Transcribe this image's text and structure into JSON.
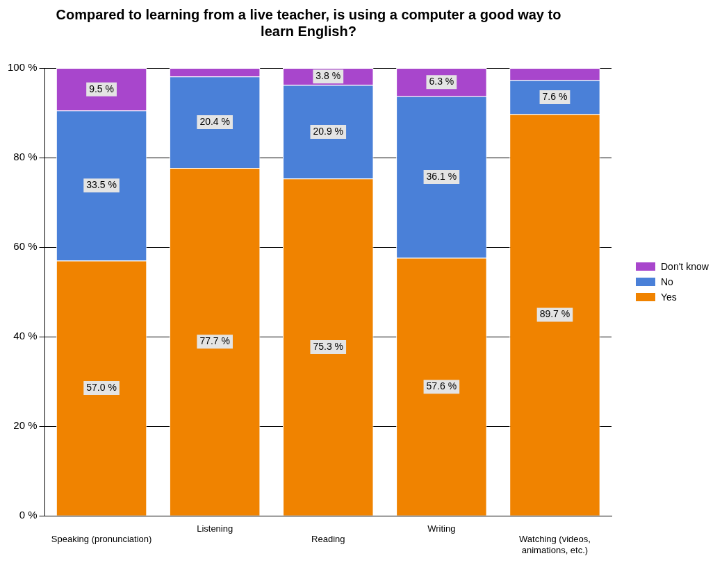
{
  "chart_data": {
    "type": "bar",
    "title": "Compared to learning from a live teacher, is using a computer a good way to learn English?",
    "categories": [
      "Speaking (pronunciation)",
      "Listening",
      "Reading",
      "Writing",
      "Watching (videos, animations, etc.)"
    ],
    "stacked": true,
    "legend": "right",
    "grid": "y",
    "ylim": [
      0,
      100
    ],
    "yticks": [
      {
        "value": 0,
        "label": "0 %"
      },
      {
        "value": 20,
        "label": "20 %"
      },
      {
        "value": 40,
        "label": "40 %"
      },
      {
        "value": 60,
        "label": "60 %"
      },
      {
        "value": 80,
        "label": "80 %"
      },
      {
        "value": 100,
        "label": "100 %"
      }
    ],
    "series": [
      {
        "name": "Yes",
        "color": "#f08300",
        "values": [
          57.0,
          77.7,
          75.3,
          57.6,
          89.7
        ],
        "value_labels": [
          "57.0 %",
          "77.7 %",
          "75.3 %",
          "57.6 %",
          "89.7 %"
        ]
      },
      {
        "name": "No",
        "color": "#4a80d8",
        "values": [
          33.5,
          20.4,
          20.9,
          36.1,
          7.6
        ],
        "value_labels": [
          "33.5 %",
          "20.4 %",
          "20.9 %",
          "36.1 %",
          "7.6 %"
        ]
      },
      {
        "name": "Don't know",
        "color": "#a846cc",
        "values": [
          9.5,
          1.9,
          3.8,
          6.3,
          2.7
        ],
        "value_labels": [
          "9.5 %",
          null,
          "3.8 %",
          "6.3 %",
          null
        ]
      }
    ]
  }
}
